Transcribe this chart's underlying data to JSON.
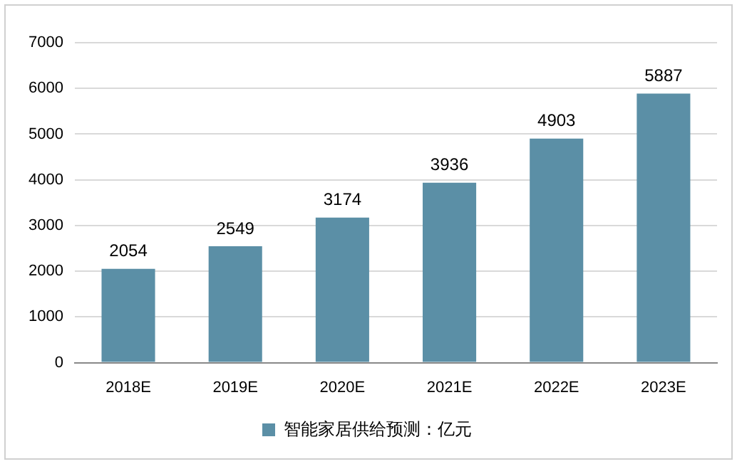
{
  "chart_data": {
    "type": "bar",
    "categories": [
      "2018E",
      "2019E",
      "2020E",
      "2021E",
      "2022E",
      "2023E"
    ],
    "series": [
      {
        "name": "智能家居供给预测：亿元",
        "color": "#5b8fa6",
        "values": [
          2054,
          2549,
          3174,
          3936,
          4903,
          5887
        ]
      }
    ],
    "ylim": [
      0,
      7000
    ],
    "yticks": [
      0,
      1000,
      2000,
      3000,
      4000,
      5000,
      6000,
      7000
    ],
    "grid": "y",
    "legend": "bottom",
    "data_labels": true
  }
}
